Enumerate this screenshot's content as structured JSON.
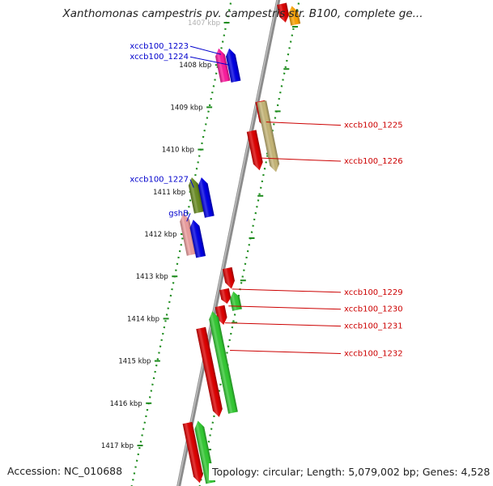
{
  "title": "Xanthomonas campestris pv. campestris str. B100, complete ge...",
  "accession": "Accession: NC_010688",
  "topology": "Topology: circular; Length: 5,079,002 bp; Genes: 4,528",
  "colors": {
    "backbone": "#8c8c8c",
    "tick": "#1e8c1e",
    "dots": "#1e8c1e",
    "label_left": "#0000cc",
    "label_right": "#cc0000"
  },
  "ruler": [
    {
      "kbp": 1407,
      "label": "1407 kbp"
    },
    {
      "kbp": 1408,
      "label": "1408 kbp"
    },
    {
      "kbp": 1409,
      "label": "1409 kbp"
    },
    {
      "kbp": 1410,
      "label": "1410 kbp"
    },
    {
      "kbp": 1411,
      "label": "1411 kbp"
    },
    {
      "kbp": 1412,
      "label": "1412 kbp"
    },
    {
      "kbp": 1413,
      "label": "1413 kbp"
    },
    {
      "kbp": 1414,
      "label": "1414 kbp"
    },
    {
      "kbp": 1415,
      "label": "1415 kbp"
    },
    {
      "kbp": 1416,
      "label": "1416 kbp"
    },
    {
      "kbp": 1417,
      "label": "1417 kbp"
    }
  ],
  "genes": [
    {
      "name": "",
      "side": "outer",
      "lane": 0,
      "start": 1406.55,
      "end": 1407.0,
      "dir": -1,
      "color": "#e00000"
    },
    {
      "name": "",
      "side": "outer",
      "lane": 1,
      "start": 1406.6,
      "end": 1407.05,
      "dir": 1,
      "color": "#ffa500"
    },
    {
      "name": "",
      "side": "outer",
      "lane": 2,
      "start": 1406.6,
      "end": 1407.05,
      "dir": 1,
      "color": "#ff33aa"
    },
    {
      "name": "xccb100_1223",
      "side": "inner",
      "lane": 1,
      "start": 1407.6,
      "end": 1408.4,
      "dir": 1,
      "color": "#ff1aa0",
      "label_kbp": 1407.75
    },
    {
      "name": "xccb100_1224",
      "side": "inner",
      "lane": 0,
      "start": 1407.6,
      "end": 1408.4,
      "dir": 1,
      "color": "#0000e6",
      "label_kbp": 1408.0
    },
    {
      "name": "xccb100_1225",
      "side": "outer",
      "lane": 0,
      "start": 1408.85,
      "end": 1409.5,
      "dir": -1,
      "color": "#e00000",
      "label_kbp": 1409.35
    },
    {
      "name": "",
      "side": "outer",
      "lane": 1,
      "start": 1408.85,
      "end": 1410.55,
      "dir": -1,
      "color": "#c8b878"
    },
    {
      "name": "xccb100_1226",
      "side": "outer",
      "lane": 0,
      "start": 1409.55,
      "end": 1410.5,
      "dir": -1,
      "color": "#e00000",
      "label_kbp": 1410.2
    },
    {
      "name": "xccb100_1227",
      "side": "inner",
      "lane": 1,
      "start": 1410.65,
      "end": 1411.5,
      "dir": 1,
      "color": "#6b8e23",
      "label_kbp": 1410.9
    },
    {
      "name": "",
      "side": "inner",
      "lane": 0,
      "start": 1410.65,
      "end": 1411.6,
      "dir": 1,
      "color": "#0000e6"
    },
    {
      "name": "gshB",
      "side": "inner",
      "lane": 1,
      "start": 1411.5,
      "end": 1412.5,
      "dir": 1,
      "color": "#f0a0a0",
      "label_kbp": 1411.7
    },
    {
      "name": "",
      "side": "inner",
      "lane": 0,
      "start": 1411.65,
      "end": 1412.55,
      "dir": 1,
      "color": "#0000e6"
    },
    {
      "name": "xccb100_1229",
      "side": "outer",
      "lane": 0,
      "start": 1412.8,
      "end": 1413.3,
      "dir": -1,
      "color": "#e00000",
      "label_kbp": 1413.3
    },
    {
      "name": "xccb100_1230",
      "side": "outer",
      "lane": 0,
      "start": 1413.3,
      "end": 1413.65,
      "dir": -1,
      "color": "#e00000",
      "label_kbp": 1413.7
    },
    {
      "name": "",
      "side": "outer",
      "lane": 1,
      "start": 1413.35,
      "end": 1413.8,
      "dir": 1,
      "color": "#33cc33"
    },
    {
      "name": "xccb100_1231",
      "side": "outer",
      "lane": 0,
      "start": 1413.7,
      "end": 1414.15,
      "dir": -1,
      "color": "#e00000",
      "label_kbp": 1414.1
    },
    {
      "name": "xccb100_1232",
      "side": "outer",
      "lane": 1,
      "start": 1413.8,
      "end": 1416.25,
      "dir": 1,
      "color": "#33cc33",
      "label_kbp": 1414.75
    },
    {
      "name": "",
      "side": "outer",
      "lane": 0,
      "start": 1414.2,
      "end": 1416.35,
      "dir": -1,
      "color": "#e00000"
    },
    {
      "name": "",
      "side": "outer",
      "lane": 1,
      "start": 1416.4,
      "end": 1417.9,
      "dir": 1,
      "color": "#33cc33"
    },
    {
      "name": "",
      "side": "outer",
      "lane": 0,
      "start": 1416.45,
      "end": 1417.9,
      "dir": -1,
      "color": "#e00000"
    }
  ]
}
